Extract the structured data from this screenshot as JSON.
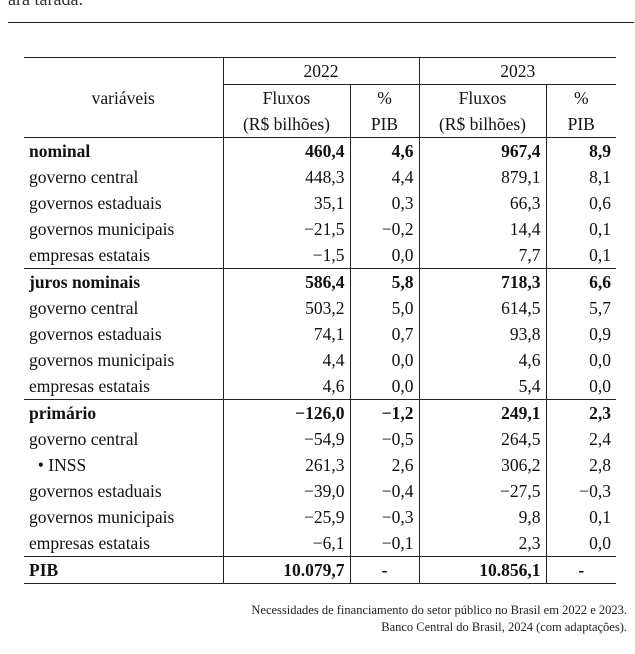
{
  "top_fragment": "ara tarada:",
  "header": {
    "var_label": "variáveis",
    "years": [
      "2022",
      "2023"
    ],
    "flux_label": "Fluxos",
    "flux_unit": "(R$ bilhões)",
    "pct_label": "%",
    "pct_unit": "PIB"
  },
  "rows": [
    {
      "label": "nominal",
      "bold": true,
      "f2022": "460,4",
      "p2022": "4,6",
      "f2023": "967,4",
      "p2023": "8,9"
    },
    {
      "label": "governo central",
      "f2022": "448,3",
      "p2022": "4,4",
      "f2023": "879,1",
      "p2023": "8,1"
    },
    {
      "label": "governos estaduais",
      "f2022": "35,1",
      "p2022": "0,3",
      "f2023": "66,3",
      "p2023": "0,6"
    },
    {
      "label": "governos municipais",
      "f2022": "−21,5",
      "p2022": "−0,2",
      "f2023": "14,4",
      "p2023": "0,1"
    },
    {
      "label": "empresas estatais",
      "f2022": "−1,5",
      "p2022": "0,0",
      "f2023": "7,7",
      "p2023": "0,1"
    },
    {
      "label": "juros nominais",
      "bold": true,
      "f2022": "586,4",
      "p2022": "5,8",
      "f2023": "718,3",
      "p2023": "6,6"
    },
    {
      "label": "governo central",
      "f2022": "503,2",
      "p2022": "5,0",
      "f2023": "614,5",
      "p2023": "5,7"
    },
    {
      "label": "governos estaduais",
      "f2022": "74,1",
      "p2022": "0,7",
      "f2023": "93,8",
      "p2023": "0,9"
    },
    {
      "label": "governos municipais",
      "f2022": "4,4",
      "p2022": "0,0",
      "f2023": "4,6",
      "p2023": "0,0"
    },
    {
      "label": "empresas estatais",
      "f2022": "4,6",
      "p2022": "0,0",
      "f2023": "5,4",
      "p2023": "0,0"
    },
    {
      "label": "primário",
      "bold": true,
      "f2022": "−126,0",
      "p2022": "−1,2",
      "f2023": "249,1",
      "p2023": "2,3"
    },
    {
      "label": "governo central",
      "f2022": "−54,9",
      "p2022": "−0,5",
      "f2023": "264,5",
      "p2023": "2,4"
    },
    {
      "label": "  • INSS",
      "f2022": "261,3",
      "p2022": "2,6",
      "f2023": "306,2",
      "p2023": "2,8"
    },
    {
      "label": "governos estaduais",
      "f2022": "−39,0",
      "p2022": "−0,4",
      "f2023": "−27,5",
      "p2023": "−0,3"
    },
    {
      "label": "governos municipais",
      "f2022": "−25,9",
      "p2022": "−0,3",
      "f2023": "9,8",
      "p2023": "0,1"
    },
    {
      "label": "empresas estatais",
      "f2022": "−6,1",
      "p2022": "−0,1",
      "f2023": "2,3",
      "p2023": "0,0"
    }
  ],
  "total": {
    "label": "PIB",
    "f2022": "10.079,7",
    "p2022": "-",
    "f2023": "10.856,1",
    "p2023": "-"
  },
  "caption": {
    "line1": "Necessidades de financiamento do setor público no Brasil em 2022 e 2023.",
    "line2": "Banco Central do Brasil, 2024 (com adaptações)."
  }
}
